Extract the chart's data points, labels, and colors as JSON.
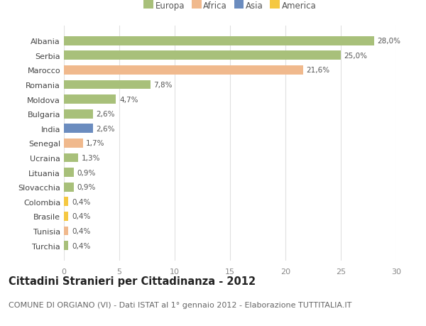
{
  "categories": [
    "Albania",
    "Serbia",
    "Marocco",
    "Romania",
    "Moldova",
    "Bulgaria",
    "India",
    "Senegal",
    "Ucraina",
    "Lituania",
    "Slovacchia",
    "Colombia",
    "Brasile",
    "Tunisia",
    "Turchia"
  ],
  "values": [
    28.0,
    25.0,
    21.6,
    7.8,
    4.7,
    2.6,
    2.6,
    1.7,
    1.3,
    0.9,
    0.9,
    0.4,
    0.4,
    0.4,
    0.4
  ],
  "labels": [
    "28,0%",
    "25,0%",
    "21,6%",
    "7,8%",
    "4,7%",
    "2,6%",
    "2,6%",
    "1,7%",
    "1,3%",
    "0,9%",
    "0,9%",
    "0,4%",
    "0,4%",
    "0,4%",
    "0,4%"
  ],
  "colors": [
    "#a8c07a",
    "#a8c07a",
    "#f0b98d",
    "#a8c07a",
    "#a8c07a",
    "#a8c07a",
    "#6b8cbf",
    "#f0b98d",
    "#a8c07a",
    "#a8c07a",
    "#a8c07a",
    "#f5c842",
    "#f5c842",
    "#f0b98d",
    "#a8c07a"
  ],
  "legend_labels": [
    "Europa",
    "Africa",
    "Asia",
    "America"
  ],
  "legend_colors": [
    "#a8c07a",
    "#f0b98d",
    "#6b8cbf",
    "#f5c842"
  ],
  "title": "Cittadini Stranieri per Cittadinanza - 2012",
  "subtitle": "COMUNE DI ORGIANO (VI) - Dati ISTAT al 1° gennaio 2012 - Elaborazione TUTTITALIA.IT",
  "xlim": [
    0,
    30
  ],
  "xticks": [
    0,
    5,
    10,
    15,
    20,
    25,
    30
  ],
  "background_color": "#ffffff",
  "grid_color": "#e0e0e0",
  "bar_height": 0.62,
  "title_fontsize": 10.5,
  "subtitle_fontsize": 8,
  "label_fontsize": 7.5,
  "tick_fontsize": 8,
  "legend_fontsize": 8.5
}
